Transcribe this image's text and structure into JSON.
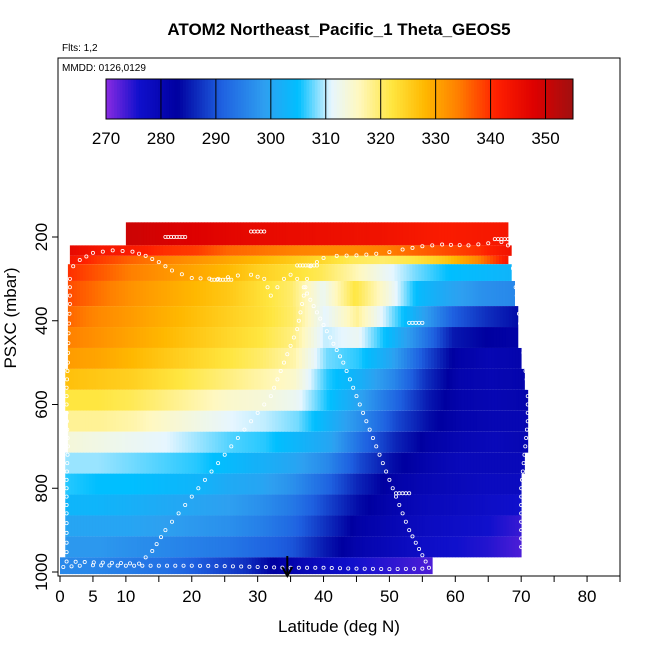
{
  "chart_data": {
    "type": "heatmap",
    "title": "ATOM2 Northeast_Pacific_1 Theta_GEOS5",
    "info_lines": [
      "Flts: 1,2",
      "MMDD: 0126,0129"
    ],
    "xlabel": "Latitude (deg N)",
    "ylabel": "PSXC (mbar)",
    "xlim": [
      0,
      85
    ],
    "ylim": [
      1000,
      50
    ],
    "y_reversed": true,
    "x_ticks": [
      0,
      5,
      10,
      20,
      30,
      40,
      50,
      60,
      70,
      80
    ],
    "x_tick_labels": [
      "0",
      "5",
      "10",
      "20",
      "30",
      "40",
      "50",
      "60",
      "70",
      "80"
    ],
    "x_minor_ticks": [
      15,
      25,
      35,
      45,
      55,
      65,
      75,
      85
    ],
    "y_ticks": [
      200,
      400,
      600,
      800,
      1000
    ],
    "y_tick_labels": [
      "200",
      "400",
      "600",
      "800",
      "1000"
    ],
    "colorbar": {
      "min": 270,
      "max": 355,
      "ticks": [
        270,
        280,
        290,
        300,
        310,
        320,
        330,
        340,
        350
      ],
      "tick_labels": [
        "270",
        "280",
        "290",
        "300",
        "310",
        "320",
        "330",
        "340",
        "350"
      ],
      "stops": [
        {
          "v": 270,
          "c": "#8a2be2"
        },
        {
          "v": 276,
          "c": "#1010cc"
        },
        {
          "v": 283,
          "c": "#0000a0"
        },
        {
          "v": 291,
          "c": "#1e60e0"
        },
        {
          "v": 299,
          "c": "#2ea0f0"
        },
        {
          "v": 305,
          "c": "#00bfff"
        },
        {
          "v": 311,
          "c": "#e6f6ff"
        },
        {
          "v": 316,
          "c": "#fff8c0"
        },
        {
          "v": 322,
          "c": "#ffe640"
        },
        {
          "v": 328,
          "c": "#ffb800"
        },
        {
          "v": 334,
          "c": "#ff8000"
        },
        {
          "v": 341,
          "c": "#ff2000"
        },
        {
          "v": 348,
          "c": "#dd0000"
        },
        {
          "v": 355,
          "c": "#a01010"
        }
      ]
    },
    "level_bands": [
      {
        "p_top": 165,
        "p_bot": 220,
        "lat_start": 10,
        "lat_end": 68,
        "theta": [
          350,
          348,
          346,
          345,
          344,
          342,
          343
        ]
      },
      {
        "p_top": 220,
        "p_bot": 245,
        "lat_start": 1.5,
        "lat_end": 68.5,
        "theta": [
          346,
          343,
          342,
          340,
          339,
          336,
          335,
          334,
          333,
          333,
          334,
          336,
          338,
          340,
          344
        ]
      },
      {
        "p_top": 245,
        "p_bot": 265,
        "lat_start": 1.5,
        "lat_end": 68,
        "theta": [
          343,
          339,
          336,
          334,
          332,
          330,
          328,
          326,
          324,
          321,
          320,
          322,
          326,
          333,
          343
        ]
      },
      {
        "p_top": 265,
        "p_bot": 305,
        "lat_start": 1.2,
        "lat_end": 68.5,
        "theta": [
          340,
          337,
          334,
          332,
          330,
          328,
          325,
          323,
          321,
          317,
          312,
          308,
          305,
          304,
          303
        ]
      },
      {
        "p_top": 305,
        "p_bot": 365,
        "lat_start": 1.2,
        "lat_end": 69,
        "theta": [
          338,
          335,
          332,
          330,
          328,
          326,
          323,
          320,
          312,
          322,
          314,
          304,
          300,
          297,
          296
        ]
      },
      {
        "p_top": 365,
        "p_bot": 415,
        "lat_start": 1.2,
        "lat_end": 69.5,
        "theta": [
          336,
          333,
          331,
          329,
          327,
          325,
          323,
          320,
          311,
          318,
          309,
          300,
          291,
          287,
          284
        ]
      },
      {
        "p_top": 415,
        "p_bot": 465,
        "lat_start": 1.2,
        "lat_end": 69.5,
        "theta": [
          334,
          332,
          330,
          328,
          326,
          324,
          322,
          319,
          310,
          312,
          304,
          295,
          285,
          283,
          282
        ]
      },
      {
        "p_top": 465,
        "p_bot": 515,
        "lat_start": 1.2,
        "lat_end": 70,
        "theta": [
          331,
          330,
          328,
          326,
          324,
          322,
          320,
          317,
          308,
          306,
          300,
          290,
          282,
          280,
          281
        ]
      },
      {
        "p_top": 515,
        "p_bot": 565,
        "lat_start": 0.8,
        "lat_end": 70.5,
        "theta": [
          327,
          326,
          325,
          323,
          321,
          319,
          317,
          315,
          306,
          302,
          296,
          287,
          281,
          280,
          281
        ]
      },
      {
        "p_top": 565,
        "p_bot": 615,
        "lat_start": 0.8,
        "lat_end": 71,
        "theta": [
          322,
          322,
          321,
          319,
          317,
          315,
          314,
          312,
          305,
          299,
          292,
          285,
          281,
          280,
          281
        ]
      },
      {
        "p_top": 615,
        "p_bot": 665,
        "lat_start": 1.2,
        "lat_end": 71,
        "theta": [
          318,
          318,
          317,
          315,
          313,
          311,
          310,
          308,
          302,
          296,
          289,
          284,
          281,
          280,
          280
        ]
      },
      {
        "p_top": 665,
        "p_bot": 715,
        "lat_start": 1.2,
        "lat_end": 71,
        "theta": [
          314,
          313,
          312,
          311,
          309,
          307,
          306,
          303,
          300,
          292,
          286,
          282,
          280,
          279,
          280
        ]
      },
      {
        "p_top": 715,
        "p_bot": 765,
        "lat_start": 0.8,
        "lat_end": 70.5,
        "theta": [
          309,
          309,
          308,
          307,
          306,
          304,
          302,
          300,
          296,
          289,
          284,
          281,
          279,
          279,
          279
        ]
      },
      {
        "p_top": 765,
        "p_bot": 815,
        "lat_start": 0.8,
        "lat_end": 70,
        "theta": [
          306,
          305,
          305,
          304,
          303,
          301,
          300,
          297,
          292,
          286,
          282,
          280,
          279,
          278,
          278
        ]
      },
      {
        "p_top": 815,
        "p_bot": 865,
        "lat_start": 0.8,
        "lat_end": 70,
        "theta": [
          303,
          303,
          302,
          301,
          300,
          299,
          297,
          294,
          289,
          284,
          281,
          279,
          278,
          277,
          276
        ]
      },
      {
        "p_top": 865,
        "p_bot": 915,
        "lat_start": 0.8,
        "lat_end": 70,
        "theta": [
          300,
          300,
          300,
          299,
          298,
          297,
          295,
          292,
          287,
          282,
          280,
          278,
          277,
          276,
          274
        ]
      },
      {
        "p_top": 915,
        "p_bot": 965,
        "lat_start": 0.8,
        "lat_end": 70,
        "theta": [
          298,
          298,
          297,
          296,
          295,
          294,
          292,
          290,
          285,
          281,
          279,
          277,
          276,
          275,
          273
        ]
      },
      {
        "p_top": 965,
        "p_bot": 1005,
        "lat_start": 0,
        "lat_end": 56.5,
        "theta": [
          296,
          296,
          295,
          294,
          293,
          291,
          289,
          287,
          283,
          280,
          278,
          276,
          275,
          274,
          273
        ]
      }
    ],
    "flight_track": [
      [
        0.5,
        988
      ],
      [
        3,
        985
      ],
      [
        5,
        984
      ],
      [
        10,
        985
      ],
      [
        15,
        985
      ],
      [
        20,
        985
      ],
      [
        25,
        986
      ],
      [
        30,
        988
      ],
      [
        35,
        990
      ],
      [
        40,
        990
      ],
      [
        45,
        992
      ],
      [
        50,
        993
      ],
      [
        55,
        992
      ],
      [
        56,
        990
      ],
      [
        55,
        960
      ],
      [
        54,
        930
      ],
      [
        53,
        900
      ],
      [
        52,
        860
      ],
      [
        51,
        820
      ],
      [
        50,
        780
      ],
      [
        49,
        740
      ],
      [
        48,
        700
      ],
      [
        47,
        660
      ],
      [
        46,
        620
      ],
      [
        45,
        580
      ],
      [
        44,
        540
      ],
      [
        43,
        500
      ],
      [
        42,
        470
      ],
      [
        41,
        440
      ],
      [
        40,
        410
      ],
      [
        39,
        380
      ],
      [
        38,
        350
      ],
      [
        37,
        320
      ],
      [
        36,
        300
      ],
      [
        35,
        290
      ],
      [
        34,
        300
      ],
      [
        33,
        320
      ],
      [
        32,
        340
      ],
      [
        31,
        300
      ],
      [
        29,
        290
      ],
      [
        27,
        292
      ],
      [
        24,
        300
      ],
      [
        20,
        298
      ],
      [
        17,
        280
      ],
      [
        15,
        260
      ],
      [
        13,
        245
      ],
      [
        11,
        235
      ],
      [
        8,
        232
      ],
      [
        5,
        238
      ],
      [
        3,
        255
      ],
      [
        2,
        270
      ],
      [
        1.5,
        300
      ],
      [
        1.5,
        360
      ],
      [
        1.3,
        430
      ],
      [
        1.2,
        500
      ],
      [
        1,
        560
      ],
      [
        1,
        620
      ],
      [
        1.2,
        700
      ],
      [
        1,
        780
      ],
      [
        1,
        860
      ],
      [
        1,
        930
      ],
      [
        1,
        975
      ],
      [
        12,
        980
      ],
      [
        14,
        950
      ],
      [
        16,
        900
      ],
      [
        18,
        860
      ],
      [
        20,
        820
      ],
      [
        22,
        780
      ],
      [
        24,
        740
      ],
      [
        26,
        700
      ],
      [
        28,
        660
      ],
      [
        30,
        620
      ],
      [
        32,
        580
      ],
      [
        33,
        540
      ],
      [
        34,
        500
      ],
      [
        35,
        460
      ],
      [
        36,
        420
      ],
      [
        36.5,
        380
      ],
      [
        37,
        340
      ],
      [
        37.5,
        300
      ],
      [
        38,
        270
      ],
      [
        40,
        250
      ],
      [
        42,
        245
      ],
      [
        45,
        244
      ],
      [
        48,
        240
      ],
      [
        50,
        236
      ],
      [
        52,
        230
      ],
      [
        55,
        222
      ],
      [
        58,
        218
      ],
      [
        62,
        220
      ],
      [
        65,
        215
      ],
      [
        67,
        212
      ],
      [
        68,
        220
      ],
      [
        68.5,
        250
      ],
      [
        69,
        300
      ],
      [
        69.5,
        360
      ],
      [
        70,
        430
      ],
      [
        70.5,
        500
      ],
      [
        71,
        560
      ],
      [
        71,
        640
      ],
      [
        70.5,
        720
      ],
      [
        70,
        800
      ],
      [
        70,
        880
      ],
      [
        70,
        940
      ]
    ],
    "track_segments": [
      {
        "lat": [
          16,
          19
        ],
        "p": 200
      },
      {
        "lat": [
          29,
          31
        ],
        "p": 187
      },
      {
        "lat": [
          66,
          68
        ],
        "p": 205
      },
      {
        "lat": [
          23,
          26
        ],
        "p": 302
      },
      {
        "lat": [
          36,
          39
        ],
        "p": 268
      },
      {
        "lat": [
          53,
          55
        ],
        "p": 405
      },
      {
        "lat": [
          51,
          53
        ],
        "p": 812
      }
    ],
    "marker_lat": 34.5
  }
}
